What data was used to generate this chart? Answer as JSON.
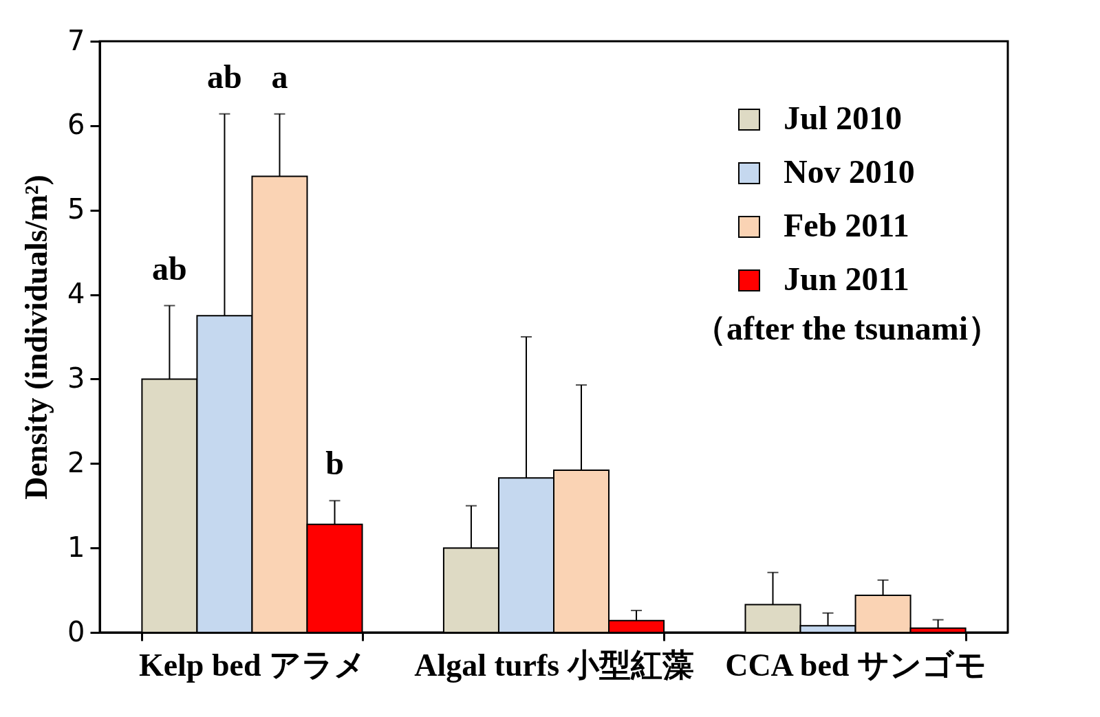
{
  "chart_data": {
    "type": "bar",
    "ylabel": "Density (individuals/m²)",
    "categories": [
      "Kelp bed アラメ",
      "Algal turfs 小型紅藻",
      "CCA bed サンゴモ"
    ],
    "series": [
      {
        "name": "Jul 2010",
        "color": "#dedac4",
        "values": [
          3.0,
          1.0,
          0.33
        ],
        "errors": [
          [
            3.0,
            3.87
          ],
          [
            1.0,
            1.5
          ],
          [
            0.33,
            0.71
          ]
        ]
      },
      {
        "name": "Nov 2010",
        "color": "#c5d8ef",
        "values": [
          3.75,
          1.83,
          0.08
        ],
        "errors": [
          [
            3.75,
            6.14
          ],
          [
            1.83,
            3.5
          ],
          [
            0.08,
            0.23
          ]
        ]
      },
      {
        "name": "Feb 2011",
        "color": "#fad3b4",
        "values": [
          5.4,
          1.92,
          0.44
        ],
        "errors": [
          [
            5.4,
            6.14
          ],
          [
            1.92,
            2.93
          ],
          [
            0.44,
            0.62
          ]
        ]
      },
      {
        "name": "Jun 2011",
        "color": "#ff0000",
        "values": [
          1.28,
          0.14,
          0.05
        ],
        "errors": [
          [
            1.28,
            1.56
          ],
          [
            0.14,
            0.26
          ],
          [
            0.05,
            0.15
          ]
        ]
      }
    ],
    "ylim": [
      0,
      7
    ],
    "yticks": [
      0,
      1,
      2,
      3,
      4,
      5,
      6,
      7
    ],
    "legend": "top right",
    "grid": false,
    "annotations": [
      "ab",
      "ab",
      "a",
      "b",
      "（after the tsunami）"
    ]
  }
}
